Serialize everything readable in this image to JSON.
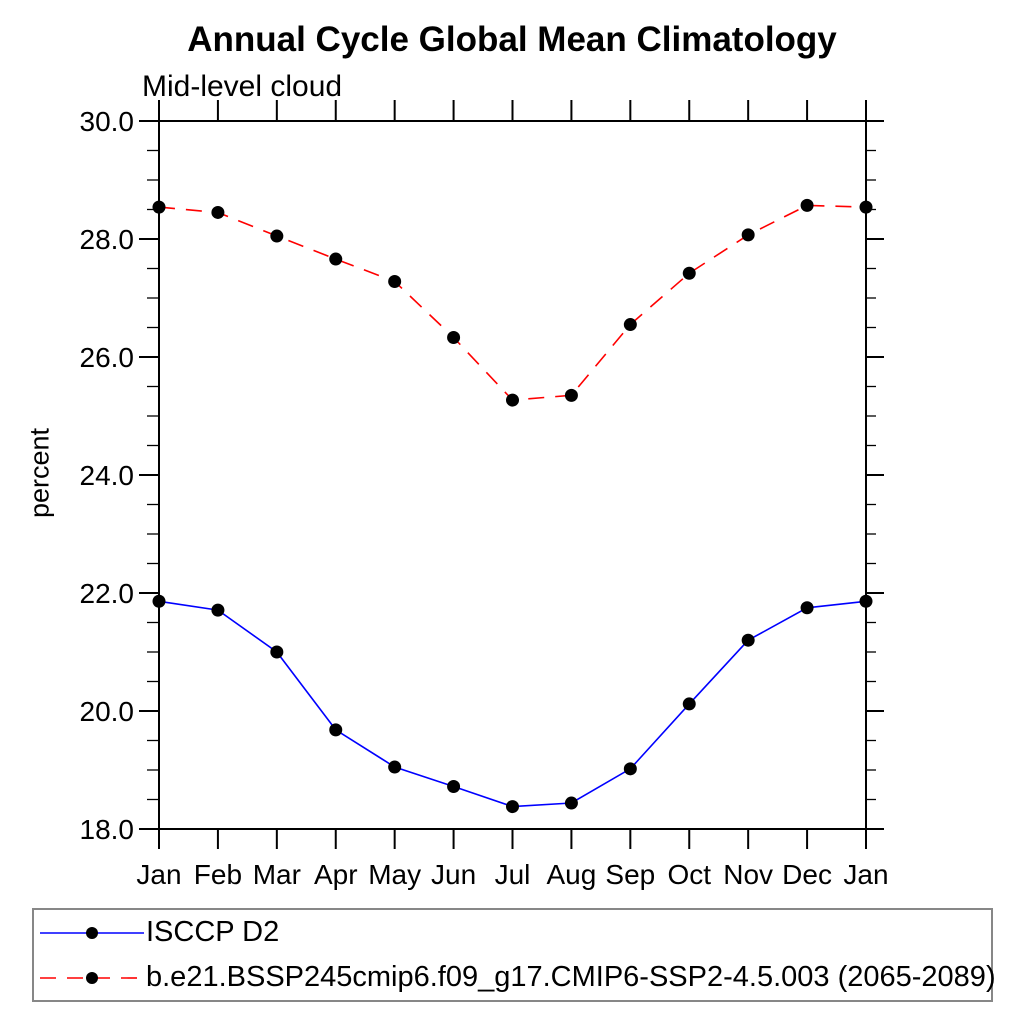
{
  "figure": {
    "title": "Annual Cycle Global Mean Climatology",
    "subtitle": "Mid-level cloud",
    "ylabel": "percent"
  },
  "chart_data": {
    "type": "line",
    "title": "Annual Cycle Global Mean Climatology",
    "subtitle": "Mid-level cloud",
    "xlabel": "",
    "ylabel": "percent",
    "categories": [
      "Jan",
      "Feb",
      "Mar",
      "Apr",
      "May",
      "Jun",
      "Jul",
      "Aug",
      "Sep",
      "Oct",
      "Nov",
      "Dec",
      "Jan"
    ],
    "y_ticks": [
      18.0,
      20.0,
      22.0,
      24.0,
      26.0,
      28.0,
      30.0
    ],
    "y_tick_labels": [
      "18.0",
      "20.0",
      "22.0",
      "24.0",
      "26.0",
      "28.0",
      "30.0"
    ],
    "ylim": [
      18.0,
      30.0
    ],
    "y_minor_tick_interval": 0.5,
    "grid": false,
    "tick_direction": "out",
    "legend_position": "bottom-left-box",
    "axis_color": "#000000",
    "marker_shape": "filled-circle",
    "series": [
      {
        "name": "ISCCP D2",
        "color": "#0000ff",
        "line_style": "solid",
        "marker_color": "#000000",
        "values": [
          21.86,
          21.71,
          21.0,
          19.68,
          19.05,
          18.72,
          18.38,
          18.44,
          19.02,
          20.12,
          21.2,
          21.75,
          21.86
        ]
      },
      {
        "name": "b.e21.BSSP245cmip6.f09_g17.CMIP6-SSP2-4.5.003 (2065-2089)",
        "color": "#ff0000",
        "line_style": "dashed",
        "marker_color": "#000000",
        "values": [
          28.54,
          28.45,
          28.05,
          27.66,
          27.28,
          26.33,
          25.27,
          25.35,
          26.55,
          27.42,
          28.07,
          28.57,
          28.54
        ]
      }
    ]
  }
}
